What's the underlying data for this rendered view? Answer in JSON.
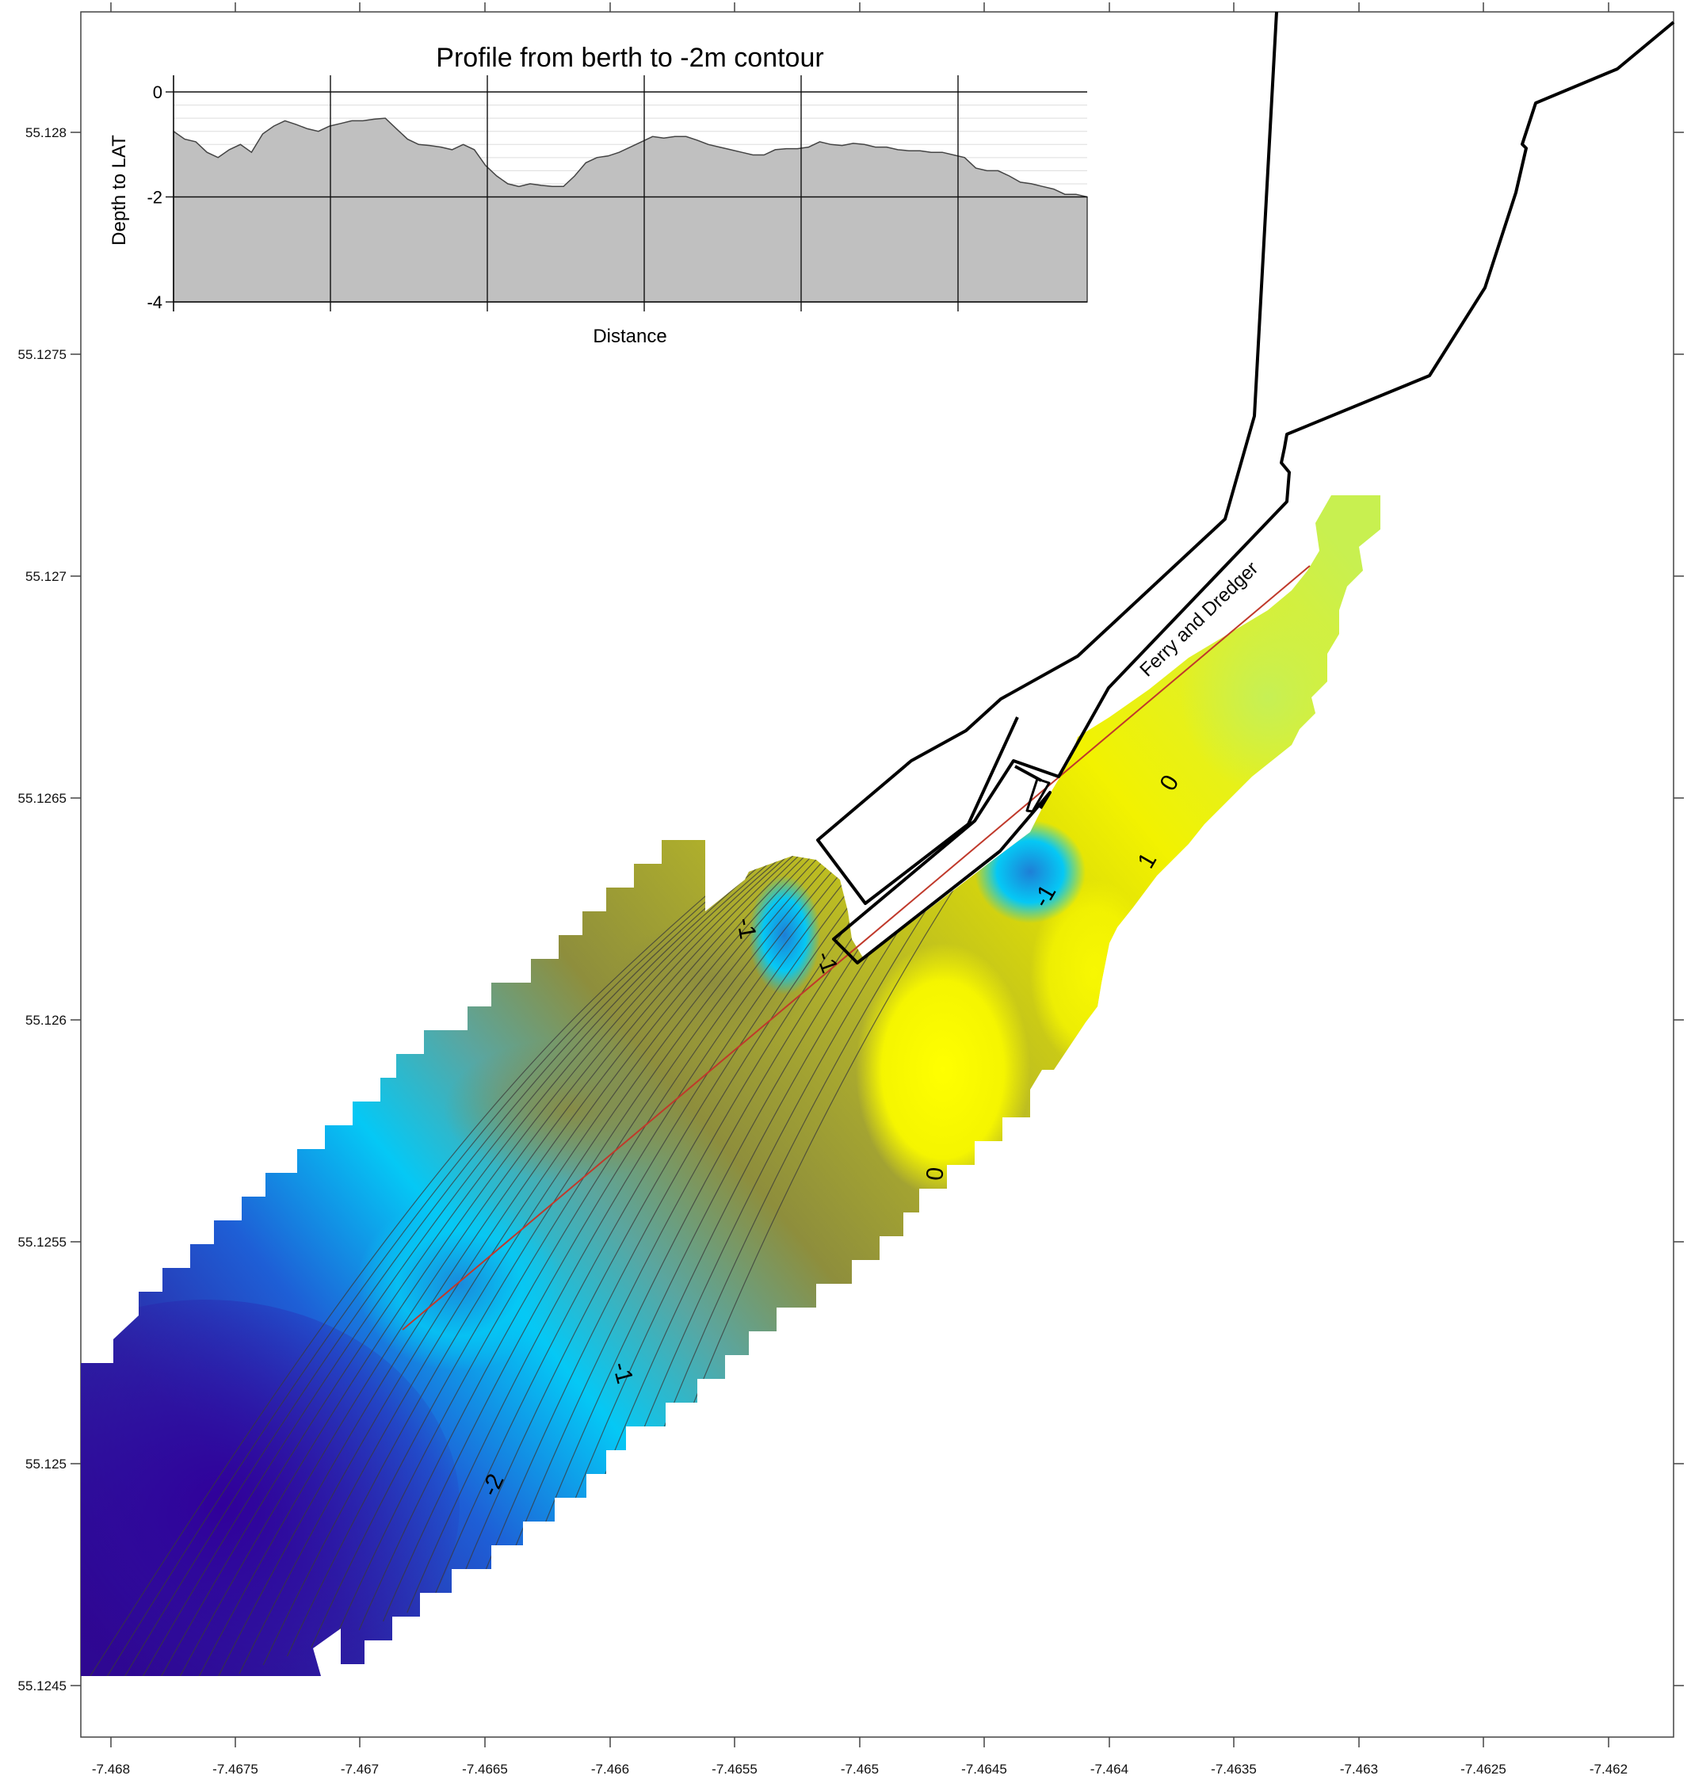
{
  "map": {
    "x_ticks": [
      "-7.468",
      "-7.4675",
      "-7.467",
      "-7.4665",
      "-7.466",
      "-7.4655",
      "-7.465",
      "-7.4645",
      "-7.464",
      "-7.4635",
      "-7.463",
      "-7.4625",
      "-7.462"
    ],
    "y_ticks": [
      "55.128",
      "55.1275",
      "55.127",
      "55.1265",
      "55.126",
      "55.1255",
      "55.125",
      "55.1245"
    ],
    "contour_labels": {
      "c0_upper": "0",
      "c1": "1",
      "cm1_berth": "-1",
      "cm1_left": "-1",
      "cm1_mid": "-1",
      "c0_lower": "0",
      "cm1_lower": "-1",
      "cm2": "-2"
    },
    "berth_label": "Ferry and Dredger",
    "colors": {
      "deep": "#2e0a8f",
      "blue": "#1e5fd6",
      "cyan": "#05c8f5",
      "olive_dark": "#8e8e3c",
      "olive": "#b2b22a",
      "yellow": "#f2f200",
      "lime": "#c8f050",
      "profile_fill": "#c0c0c0",
      "profile_line": "#c0392b"
    }
  },
  "profile": {
    "title": "Profile from berth to -2m contour",
    "ylabel": "Depth to LAT",
    "xlabel": "Distance",
    "y_ticks": [
      "0",
      "-2",
      "-4"
    ]
  },
  "chart_data": {
    "type": "area",
    "title": "Profile from berth to -2m contour",
    "xlabel": "Distance",
    "ylabel": "Depth to LAT",
    "ylim": [
      -4,
      0
    ],
    "y": [
      -0.75,
      -0.9,
      -0.95,
      -1.15,
      -1.25,
      -1.1,
      -1.0,
      -1.15,
      -0.8,
      -0.65,
      -0.55,
      -0.62,
      -0.7,
      -0.75,
      -0.65,
      -0.6,
      -0.55,
      -0.55,
      -0.52,
      -0.5,
      -0.7,
      -0.9,
      -1.0,
      -1.02,
      -1.05,
      -1.1,
      -1.0,
      -1.1,
      -1.4,
      -1.6,
      -1.75,
      -1.8,
      -1.75,
      -1.78,
      -1.8,
      -1.8,
      -1.6,
      -1.35,
      -1.25,
      -1.22,
      -1.15,
      -1.05,
      -0.95,
      -0.85,
      -0.88,
      -0.85,
      -0.85,
      -0.92,
      -1.0,
      -1.05,
      -1.1,
      -1.15,
      -1.2,
      -1.2,
      -1.1,
      -1.08,
      -1.08,
      -1.05,
      -0.95,
      -1.0,
      -1.02,
      -0.98,
      -1.0,
      -1.05,
      -1.05,
      -1.1,
      -1.12,
      -1.12,
      -1.15,
      -1.15,
      -1.2,
      -1.25,
      -1.45,
      -1.5,
      -1.5,
      -1.6,
      -1.72,
      -1.75,
      -1.8,
      -1.85,
      -1.95,
      -1.95,
      -2.0
    ]
  }
}
